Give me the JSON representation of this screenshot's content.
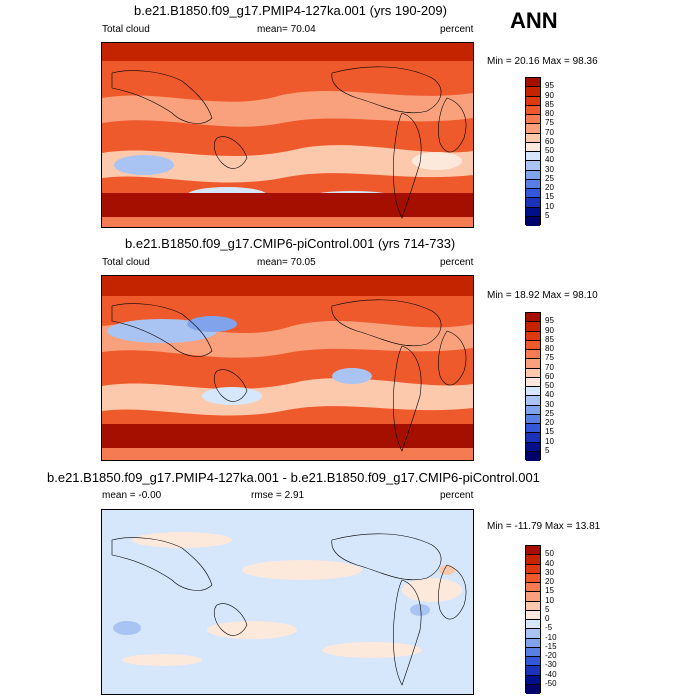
{
  "season": "ANN",
  "panels": [
    {
      "title": "b.e21.B1850.f09_g17.PMIP4-127ka.001 (yrs 190-209)",
      "left": "Total cloud",
      "mean_label": "mean=",
      "mean_value": "70.04",
      "units": "percent",
      "minmax": "Min =  20.16 Max =  98.36",
      "levels": [
        "95",
        "90",
        "85",
        "80",
        "75",
        "70",
        "60",
        "50",
        "40",
        "30",
        "25",
        "20",
        "15",
        "10",
        "5"
      ]
    },
    {
      "title": "b.e21.B1850.f09_g17.CMIP6-piControl.001 (yrs 714-733)",
      "left": "Total cloud",
      "mean_label": "mean=",
      "mean_value": "70.05",
      "units": "percent",
      "minmax": "Min =  18.92 Max =  98.10",
      "levels": [
        "95",
        "90",
        "85",
        "80",
        "75",
        "70",
        "60",
        "50",
        "40",
        "30",
        "25",
        "20",
        "15",
        "10",
        "5"
      ]
    },
    {
      "title": "b.e21.B1850.f09_g17.PMIP4-127ka.001 - b.e21.B1850.f09_g17.CMIP6-piControl.001",
      "left": "mean =  -0.00",
      "rmse_label": "rmse =",
      "rmse_value": "2.91",
      "units": "percent",
      "minmax": "Min = -11.79 Max =  13.81",
      "levels": [
        "50",
        "40",
        "30",
        "20",
        "15",
        "10",
        "5",
        "0",
        "-5",
        "-10",
        "-15",
        "-20",
        "-30",
        "-40",
        "-50"
      ]
    }
  ],
  "colors": {
    "abs_scale": [
      "#a50f00",
      "#c42400",
      "#dd3a12",
      "#ee5a2c",
      "#f57c52",
      "#f9a17d",
      "#fcc9ac",
      "#fde8dc",
      "#d6e6fb",
      "#a9c4f3",
      "#80a3ec",
      "#5a7fe4",
      "#3457d8",
      "#1a33b8",
      "#000f8a",
      "#00006a"
    ],
    "diff_scale": [
      "#a50f00",
      "#c42400",
      "#dd3a12",
      "#ee5a2c",
      "#f57c52",
      "#f9a17d",
      "#fcc9ac",
      "#fde8dc",
      "#d6e6fb",
      "#a9c4f3",
      "#80a3ec",
      "#5a7fe4",
      "#3457d8",
      "#1a33b8",
      "#000f8a",
      "#00006a"
    ]
  }
}
